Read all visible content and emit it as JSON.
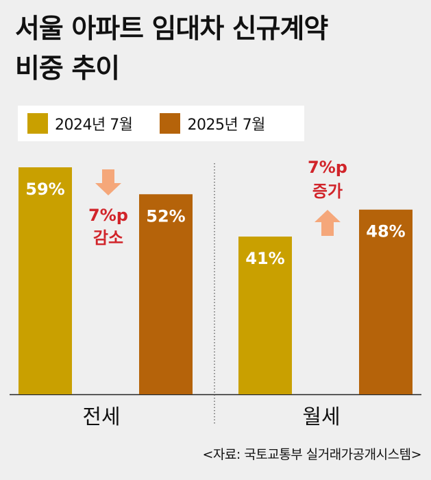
{
  "title_line1": "서울 아파트 임대차 신규계약",
  "title_line2": "비중 추이",
  "source": "<자료: 국토교통부 실거래가공개시스템>",
  "colors": {
    "series1": "#c9a000",
    "series2": "#b5630a",
    "annotation": "#d1242a",
    "arrow": "#f5a77a"
  },
  "chart_data": {
    "type": "bar",
    "categories": [
      "전세",
      "월세"
    ],
    "series": [
      {
        "name": "2024년 7월",
        "values": [
          59,
          41
        ]
      },
      {
        "name": "2025년 7월",
        "values": [
          52,
          48
        ]
      }
    ],
    "value_labels": [
      [
        "59%",
        "41%"
      ],
      [
        "52%",
        "48%"
      ]
    ],
    "annotations": [
      {
        "category": "전세",
        "line1": "7%p",
        "line2": "감소",
        "direction": "down"
      },
      {
        "category": "월세",
        "line1": "7%p",
        "line2": "증가",
        "direction": "up"
      }
    ],
    "ylim": [
      0,
      59
    ],
    "legend_position": "top-left",
    "grid": false
  }
}
